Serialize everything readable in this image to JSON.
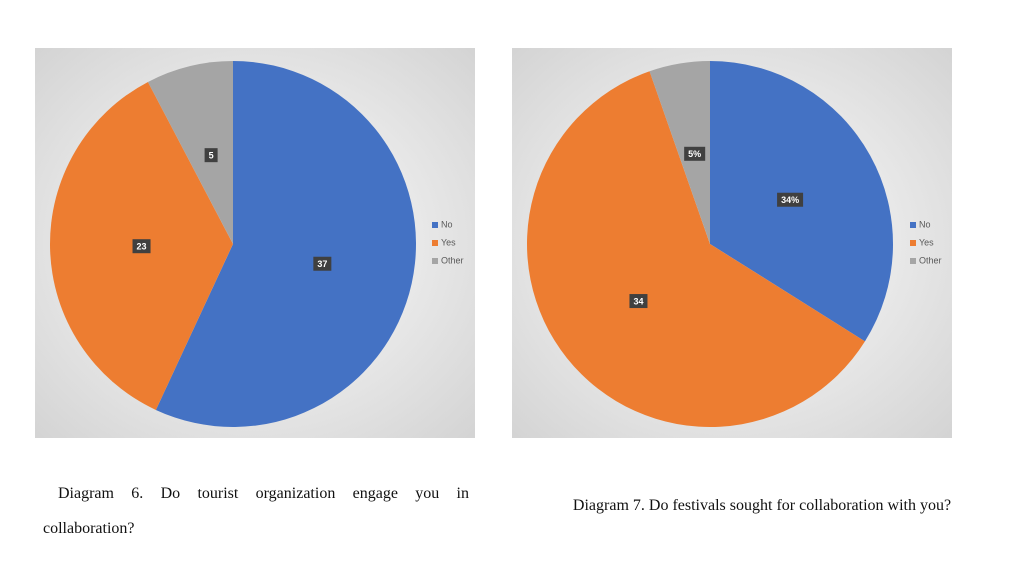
{
  "chart_data": [
    {
      "type": "pie",
      "title": "Diagram 6. Do tourist organization engage you in collaboration?",
      "categories": [
        "No",
        "Yes",
        "Other"
      ],
      "values": [
        37,
        23,
        5
      ],
      "colors": [
        "#4472c4",
        "#ed7d31",
        "#a5a5a5"
      ],
      "legend": "right"
    },
    {
      "type": "pie",
      "title": "Diagram 7. Do festivals sought for collaboration with you?",
      "categories": [
        "No",
        "Yes",
        "Other"
      ],
      "values": [
        19,
        34,
        3
      ],
      "value_labels": [
        "34%",
        "34",
        "5%"
      ],
      "colors": [
        "#4472c4",
        "#ed7d31",
        "#a5a5a5"
      ],
      "legend": "right"
    }
  ]
}
